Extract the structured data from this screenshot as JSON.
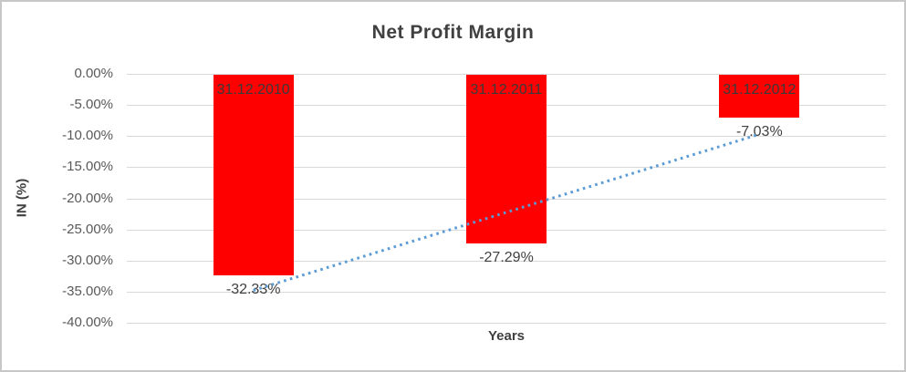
{
  "chart_data": {
    "type": "bar",
    "title": "Net Profit Margin",
    "xlabel": "Years",
    "ylabel": "IN (%)",
    "categories": [
      "31.12.2010",
      "31.12.2011",
      "31.12.2012"
    ],
    "values": [
      -32.33,
      -27.29,
      -7.03
    ],
    "value_labels": [
      "-32.33%",
      "-27.29%",
      "-7.03%"
    ],
    "ylim": [
      -40,
      0
    ],
    "ytick_step": 5,
    "ytick_labels": [
      "0.00%",
      "-5.00%",
      "-10.00%",
      "-15.00%",
      "-20.00%",
      "-25.00%",
      "-30.00%",
      "-35.00%",
      "-40.00%"
    ],
    "grid": true,
    "legend": "none",
    "bar_color": "#ff0000",
    "title_color": "#404040",
    "label_color": "#404040",
    "tick_color": "#595959",
    "gridline_color": "#d9d9d9",
    "trendline": {
      "style": "dotted",
      "color": "#5b9bd5",
      "start_value": -34.8,
      "end_value": -9.7
    }
  }
}
